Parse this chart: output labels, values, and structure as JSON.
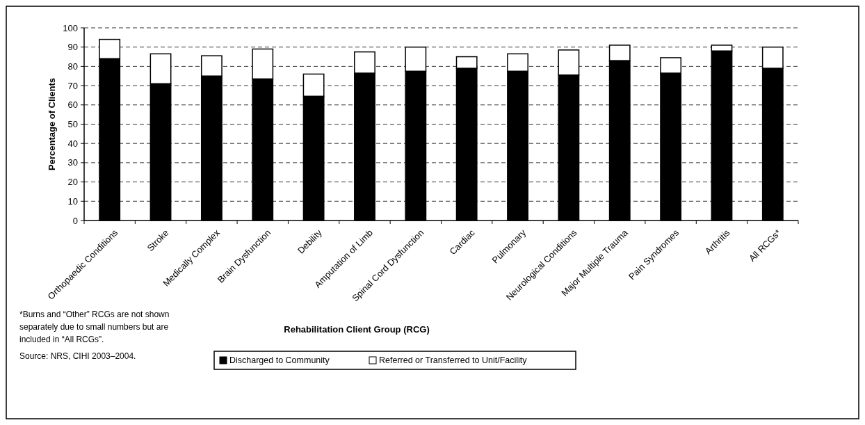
{
  "chart_data": {
    "type": "bar",
    "stacked": true,
    "xlabel": "Rehabilitation Client Group (RCG)",
    "ylabel": "Percentage of Clients",
    "categories": [
      "Orthopaedic Conditions",
      "Stroke",
      "Medically Complex",
      "Brain Dysfunction",
      "Debility",
      "Amputation of Limb",
      "Spinal Cord Dysfunction",
      "Cardiac",
      "Pulmonary",
      "Neurological Conditions",
      "Major Multiple Trauma",
      "Pain Syndromes",
      "Arthritis",
      "All RCGs*"
    ],
    "series": [
      {
        "name": "Discharged to Community",
        "color": "#000000",
        "values": [
          84,
          71,
          75,
          73.5,
          64.5,
          76.5,
          77.5,
          79,
          77.5,
          75.5,
          83,
          76.5,
          88,
          79
        ]
      },
      {
        "name": "Referred or Transferred to Unit/Facility",
        "color": "#ffffff",
        "values": [
          10,
          15.5,
          10.5,
          15.5,
          11.5,
          11,
          12.5,
          6,
          9,
          13,
          8,
          8,
          3,
          11
        ]
      }
    ],
    "ylim": [
      0,
      100
    ],
    "yticks": [
      0,
      10,
      20,
      30,
      40,
      50,
      60,
      70,
      80,
      90,
      100
    ],
    "grid": "y",
    "legend": "bottom",
    "annotations": [
      "*Burns and “Other” RCGs are not shown separately due to small numbers but are included in “All RCGs”.",
      "Source: NRS, CIHI 2003–2004."
    ]
  }
}
